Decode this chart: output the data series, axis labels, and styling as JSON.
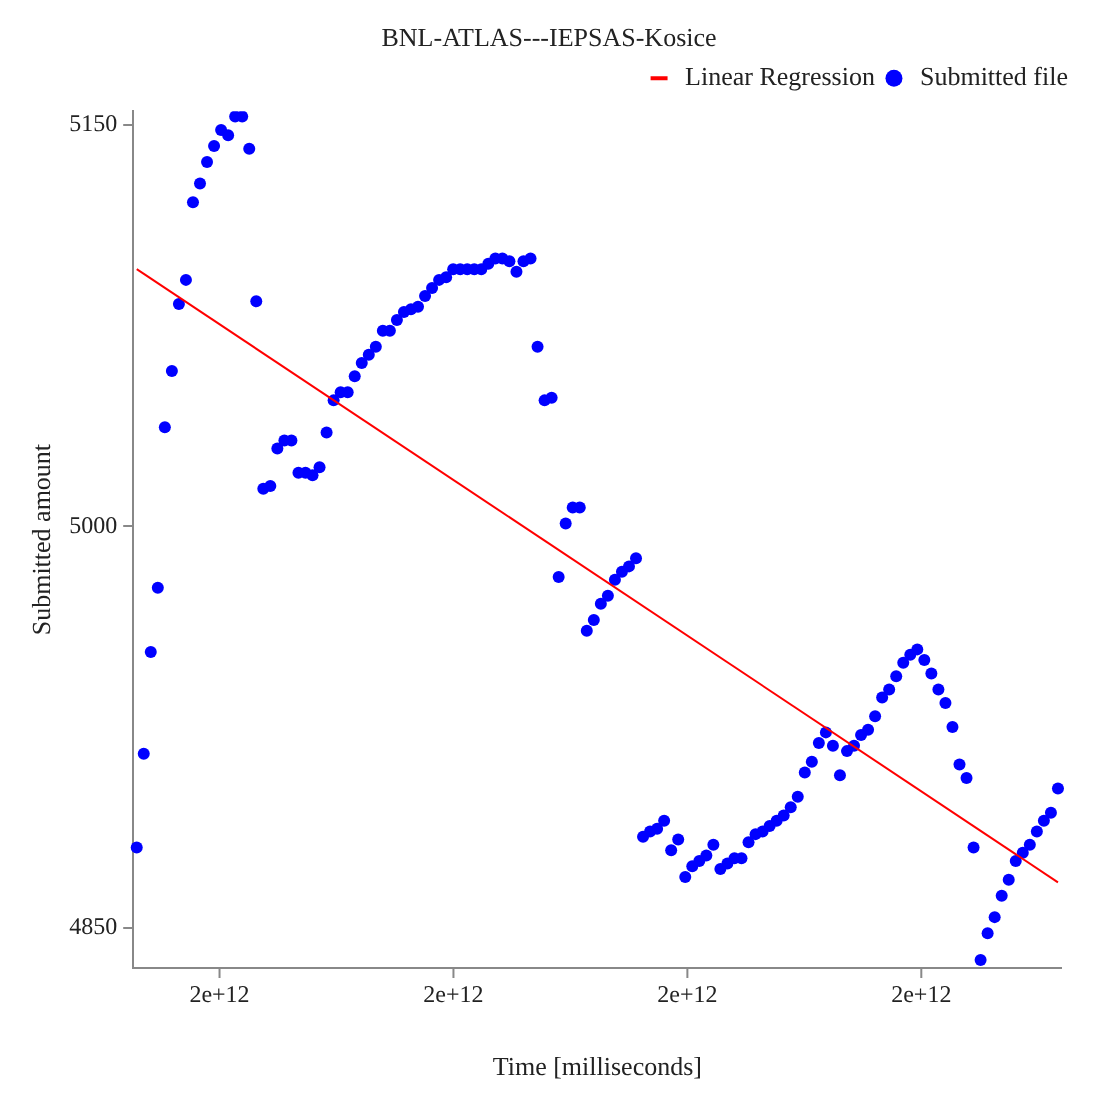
{
  "chart_data": {
    "type": "scatter",
    "title": "BNL-ATLAS---IEPSAS-Kosice",
    "xlabel": "Time [milliseconds]",
    "ylabel": "Submitted amount",
    "categories": [
      null,
      null,
      null,
      null,
      null,
      null,
      null,
      null,
      null,
      null,
      null,
      null,
      null,
      null,
      null,
      null,
      null,
      null,
      null,
      null,
      null,
      null,
      null,
      null,
      null,
      null,
      null,
      null,
      null,
      null,
      null,
      null,
      null,
      null,
      null,
      null,
      null,
      null,
      null,
      null,
      null,
      null,
      null,
      null,
      null,
      null,
      null,
      null,
      null,
      null,
      null,
      null,
      null,
      null,
      null,
      null,
      null,
      null,
      null,
      null,
      null,
      null,
      null,
      null,
      null,
      null,
      null,
      null,
      null,
      null,
      null,
      null,
      null,
      null,
      null,
      null,
      null,
      null,
      null,
      null,
      null,
      null,
      null,
      null,
      null,
      null,
      null,
      null,
      null,
      null,
      null,
      null,
      null,
      null,
      null,
      null,
      null,
      null,
      null,
      null,
      null,
      null,
      null,
      null,
      null,
      null,
      null,
      null,
      null,
      null,
      null,
      null,
      null,
      null,
      null,
      null,
      null,
      null,
      null,
      null,
      null,
      null,
      null,
      null,
      null,
      null,
      null,
      null,
      null,
      null,
      null,
      null
    ],
    "annotations": [
      "2e+12",
      "2e+12",
      "2e+12",
      "2e+12"
    ],
    "ylim": [
      4835,
      5155
    ],
    "yticks": [
      4850,
      5000,
      5150
    ],
    "grid": false,
    "legend": "top right",
    "marker": "circle",
    "series": [
      {
        "name": "Linear Regression",
        "type": "line",
        "marker": "none",
        "color": "#ff0000",
        "values": [
          5096,
          null,
          null,
          null,
          null,
          null,
          null,
          null,
          null,
          null,
          null,
          null,
          null,
          null,
          null,
          null,
          null,
          null,
          null,
          null,
          null,
          null,
          null,
          null,
          null,
          null,
          null,
          null,
          null,
          null,
          null,
          null,
          null,
          null,
          null,
          null,
          null,
          null,
          null,
          null,
          null,
          null,
          null,
          null,
          null,
          null,
          null,
          null,
          null,
          null,
          null,
          null,
          null,
          null,
          null,
          null,
          null,
          null,
          null,
          null,
          null,
          null,
          null,
          null,
          null,
          null,
          null,
          null,
          null,
          null,
          null,
          null,
          null,
          null,
          null,
          null,
          null,
          null,
          null,
          null,
          null,
          null,
          null,
          null,
          null,
          null,
          null,
          null,
          null,
          null,
          null,
          null,
          null,
          null,
          null,
          null,
          null,
          null,
          null,
          null,
          null,
          null,
          null,
          null,
          null,
          null,
          null,
          null,
          null,
          null,
          null,
          null,
          null,
          null,
          null,
          null,
          null,
          null,
          null,
          null,
          null,
          null,
          null,
          null,
          null,
          null,
          null,
          null,
          null,
          null,
          null,
          4867
        ]
      },
      {
        "name": "Submitted file",
        "type": "scatter",
        "color": "#0000ff",
        "values": [
          4880,
          4915,
          4953,
          4977,
          5037,
          5058,
          5083,
          5092,
          5121,
          5128,
          5136,
          5142,
          5148,
          5146,
          5153,
          5153,
          5141,
          5084,
          5014,
          5015,
          5029,
          5032,
          5032,
          5020,
          5020,
          5019,
          5022,
          5035,
          5047,
          5050,
          5050,
          5056,
          5061,
          5064,
          5067,
          5073,
          5073,
          5077,
          5080,
          5081,
          5082,
          5086,
          5089,
          5092,
          5093,
          5096,
          5096,
          5096,
          5096,
          5096,
          5098,
          5100,
          5100,
          5099,
          5095,
          5099,
          5100,
          5067,
          5047,
          5048,
          4981,
          5001,
          5007,
          5007,
          4961,
          4965,
          4971,
          4974,
          4980,
          4983,
          4985,
          4988,
          4884,
          4886,
          4887,
          4890,
          4879,
          4883,
          4869,
          4873,
          4875,
          4877,
          4881,
          4872,
          4874,
          4876,
          4876,
          4882,
          4885,
          4886,
          4888,
          4890,
          4892,
          4895,
          4899,
          4908,
          4912,
          4919,
          4923,
          4918,
          4907,
          4916,
          4918,
          4922,
          4924,
          4929,
          4936,
          4939,
          4944,
          4949,
          4952,
          4954,
          4950,
          4945,
          4939,
          4934,
          4925,
          4911,
          4906,
          4880,
          4838,
          4848,
          4854,
          4862,
          4868,
          4875,
          4878,
          4881,
          4886,
          4890,
          4893,
          4902
        ]
      }
    ]
  }
}
